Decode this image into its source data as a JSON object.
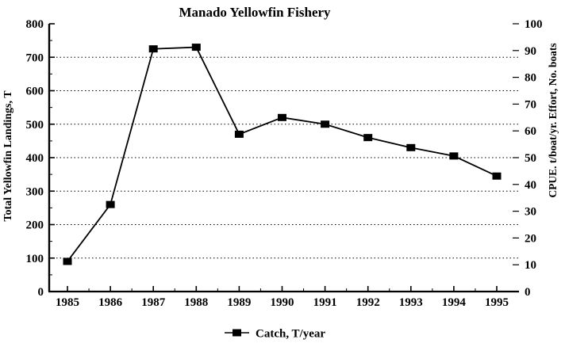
{
  "colors": {
    "foreground": "#000000",
    "background": "#ffffff"
  },
  "chart_data": {
    "type": "line",
    "title": "Manado Yellowfin Fishery",
    "x": [
      1985,
      1986,
      1987,
      1988,
      1989,
      1990,
      1991,
      1992,
      1993,
      1994,
      1995
    ],
    "series": [
      {
        "name": "Catch, T/year",
        "axis": "left",
        "values": [
          90,
          260,
          725,
          730,
          470,
          520,
          500,
          460,
          430,
          405,
          345
        ],
        "color": "#000000",
        "marker": "filled-square",
        "line_style": "solid"
      }
    ],
    "xlabel": "",
    "ylabel_left": "Total Yellowfin Landings, T",
    "ylabel_right": "CPUE. t/boat/yr. Effort, No. boats",
    "ylim_left": [
      0,
      800
    ],
    "ytick_step_left": 100,
    "yminor_step_left": 50,
    "ylim_right": [
      0,
      100
    ],
    "ytick_step_right": 10,
    "grid": "horizontal-dotted",
    "legend_position": "bottom-center",
    "legend_marker": "line-through-filled-square"
  }
}
